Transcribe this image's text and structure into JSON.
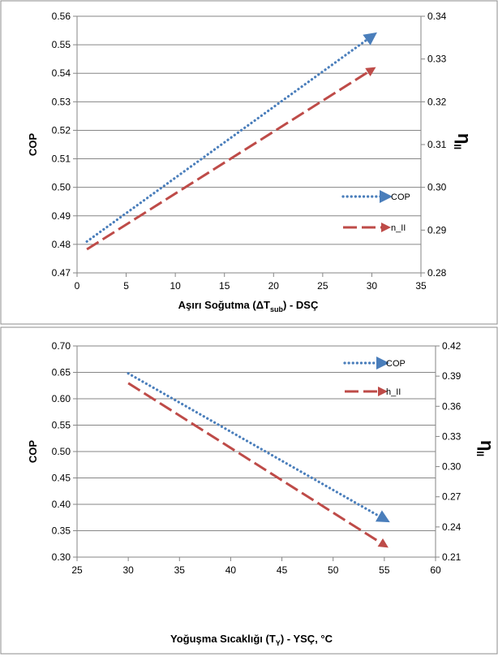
{
  "chart_data": [
    {
      "type": "line",
      "xlabel_main": "Aşırı Soğutma (ΔT",
      "xlabel_sub": "sub",
      "xlabel_tail": ") - DSÇ",
      "ylabel": "COP",
      "y2label_main": "η",
      "y2label_sub": "II",
      "xlim": [
        0,
        35
      ],
      "ylim": [
        0.47,
        0.56
      ],
      "y2lim": [
        0.28,
        0.34
      ],
      "xticks": [
        "0",
        "5",
        "10",
        "15",
        "20",
        "25",
        "30",
        "35"
      ],
      "yticks": [
        "0.47",
        "0.48",
        "0.49",
        "0.50",
        "0.51",
        "0.52",
        "0.53",
        "0.54",
        "0.55",
        "0.56"
      ],
      "y2ticks": [
        "0.28",
        "0.29",
        "0.30",
        "0.31",
        "0.32",
        "0.33",
        "0.34"
      ],
      "legend_position": "right",
      "series": [
        {
          "name": "COP",
          "axis": "left",
          "style": "dotted",
          "color": "#4a7ebb",
          "x": [
            1,
            30
          ],
          "y": [
            0.481,
            0.553
          ]
        },
        {
          "name": "n_II",
          "axis": "right",
          "style": "dashed",
          "color": "#be4b48",
          "x": [
            1,
            30
          ],
          "y": [
            0.2855,
            0.3275
          ]
        }
      ]
    },
    {
      "type": "line",
      "xlabel_main": "Yoğuşma Sıcaklığı  (T",
      "xlabel_sub": "Y",
      "xlabel_tail": ") - YSÇ, °C",
      "ylabel": "COP",
      "y2label_main": "η",
      "y2label_sub": "II",
      "xlim": [
        25,
        60
      ],
      "ylim": [
        0.3,
        0.7
      ],
      "y2lim": [
        0.21,
        0.42
      ],
      "xticks": [
        "25",
        "30",
        "35",
        "40",
        "45",
        "50",
        "55",
        "60"
      ],
      "yticks": [
        "0.30",
        "0.35",
        "0.40",
        "0.45",
        "0.50",
        "0.55",
        "0.60",
        "0.65",
        "0.70"
      ],
      "y2ticks": [
        "0.21",
        "0.24",
        "0.27",
        "0.30",
        "0.33",
        "0.36",
        "0.39",
        "0.42"
      ],
      "legend_position": "top-right",
      "series": [
        {
          "name": "COP",
          "axis": "left",
          "style": "dotted",
          "color": "#4a7ebb",
          "x": [
            30,
            55
          ],
          "y": [
            0.648,
            0.372
          ]
        },
        {
          "name": "h_II",
          "axis": "right",
          "style": "dashed",
          "color": "#be4b48",
          "x": [
            30,
            55
          ],
          "y": [
            0.383,
            0.222
          ]
        }
      ]
    }
  ]
}
